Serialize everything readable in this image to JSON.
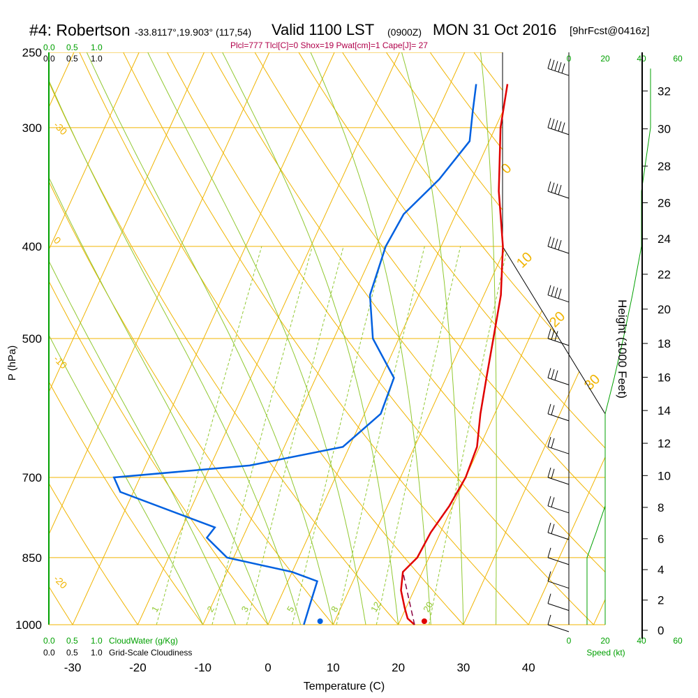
{
  "header": {
    "station": "#4: Robertson",
    "coords": "-33.8117°,19.903° (117,54)",
    "valid": "Valid 1100 LST",
    "zulu": "(0900Z)",
    "date": "MON 31 Oct 2016",
    "forecast": "[9hrFcst@0416z]"
  },
  "stats_line": "Plcl=777 Tlcl[C]=0 Shox=19 Pwat[cm]=1 Cape[J]= 27",
  "colors": {
    "temperature": "#e00000",
    "dewpoint": "#0060e0",
    "isotherm_isobar": "#f0b400",
    "dry_adiabat": "#f0b400",
    "moist_adiabat": "#90c830",
    "mixing_ratio": "#90c830",
    "cloud_scale": "#00a000",
    "stats": "#b0004a"
  },
  "labels": {
    "cloud_top": [
      "0.0",
      "0.5",
      "1.0"
    ],
    "cloud_top_black": [
      "0.0",
      "0.5",
      "1.0"
    ],
    "cloud_bottom": [
      "0.0",
      "0.5",
      "1.0"
    ],
    "cloud_water_label": "CloudWater (g/Kg)",
    "cloudiness_bottom": [
      "0.0",
      "0.5",
      "1.0"
    ],
    "cloudiness_label": "Grid-Scale Cloudiness",
    "speed_ticks": [
      "0",
      "20",
      "40",
      "60"
    ],
    "speed_label": "Speed (kt)"
  },
  "chart_data": {
    "type": "line",
    "title": "",
    "xlabel": "Temperature (C)",
    "ylabel": "P (hPa)",
    "right_ylabel": "Height (1000 Feet)",
    "x_ticks": [
      -30,
      -20,
      -10,
      0,
      10,
      20,
      30,
      40
    ],
    "pressure_ticks": [
      250,
      300,
      400,
      500,
      700,
      850,
      1000
    ],
    "height_ticks_kft": [
      0,
      2,
      4,
      6,
      8,
      10,
      12,
      14,
      16,
      18,
      20,
      22,
      24,
      26,
      28,
      30,
      32
    ],
    "dry_adiabat_labels": [
      "-30",
      "-20",
      "-10",
      "0",
      "10",
      "0",
      "10",
      "20",
      "30"
    ],
    "mixing_ratio_labels": [
      "1",
      "2",
      "3",
      "5",
      "8",
      "12",
      "20"
    ],
    "series": [
      {
        "name": "temperature",
        "points": [
          {
            "p": 270,
            "t": -1.2
          },
          {
            "p": 300,
            "t": 0.8
          },
          {
            "p": 350,
            "t": 5.0
          },
          {
            "p": 400,
            "t": 9.5
          },
          {
            "p": 450,
            "t": 12.6
          },
          {
            "p": 500,
            "t": 14.5
          },
          {
            "p": 550,
            "t": 16.2
          },
          {
            "p": 600,
            "t": 17.8
          },
          {
            "p": 650,
            "t": 19.6
          },
          {
            "p": 700,
            "t": 20.0
          },
          {
            "p": 750,
            "t": 19.5
          },
          {
            "p": 800,
            "t": 18.5
          },
          {
            "p": 850,
            "t": 18.2
          },
          {
            "p": 880,
            "t": 17.0
          },
          {
            "p": 920,
            "t": 18.0
          },
          {
            "p": 960,
            "t": 19.8
          },
          {
            "p": 985,
            "t": 21.0
          },
          {
            "p": 1000,
            "t": 22.5
          }
        ]
      },
      {
        "name": "dewpoint",
        "points": [
          {
            "p": 270,
            "t": -6.0
          },
          {
            "p": 290,
            "t": -4.5
          },
          {
            "p": 310,
            "t": -3.0
          },
          {
            "p": 340,
            "t": -5.0
          },
          {
            "p": 370,
            "t": -8.0
          },
          {
            "p": 400,
            "t": -8.5
          },
          {
            "p": 450,
            "t": -7.5
          },
          {
            "p": 500,
            "t": -4.0
          },
          {
            "p": 550,
            "t": 2.0
          },
          {
            "p": 600,
            "t": 2.5
          },
          {
            "p": 650,
            "t": -1.0
          },
          {
            "p": 680,
            "t": -14.0
          },
          {
            "p": 700,
            "t": -34.0
          },
          {
            "p": 725,
            "t": -32.0
          },
          {
            "p": 790,
            "t": -15.0
          },
          {
            "p": 810,
            "t": -15.5
          },
          {
            "p": 850,
            "t": -11.0
          },
          {
            "p": 880,
            "t": 0.0
          },
          {
            "p": 900,
            "t": 4.5
          },
          {
            "p": 950,
            "t": 5.0
          },
          {
            "p": 1000,
            "t": 5.5
          }
        ]
      },
      {
        "name": "parcel",
        "points": [
          {
            "p": 1000,
            "t": 22.5
          },
          {
            "p": 880,
            "t": 17.0
          }
        ]
      }
    ],
    "surface_markers": {
      "temperature": 24.0,
      "dewpoint": 8.0
    },
    "wind_profile_kt": [
      {
        "p": 260,
        "spd": 45
      },
      {
        "p": 300,
        "spd": 45
      },
      {
        "p": 350,
        "spd": 40
      },
      {
        "p": 400,
        "spd": 40
      },
      {
        "p": 450,
        "spd": 35
      },
      {
        "p": 500,
        "spd": 30
      },
      {
        "p": 550,
        "spd": 25
      },
      {
        "p": 600,
        "spd": 20
      },
      {
        "p": 650,
        "spd": 20
      },
      {
        "p": 700,
        "spd": 20
      },
      {
        "p": 750,
        "spd": 20
      },
      {
        "p": 800,
        "spd": 15
      },
      {
        "p": 850,
        "spd": 10
      },
      {
        "p": 900,
        "spd": 10
      },
      {
        "p": 950,
        "spd": 10
      },
      {
        "p": 1000,
        "spd": 10
      }
    ]
  }
}
